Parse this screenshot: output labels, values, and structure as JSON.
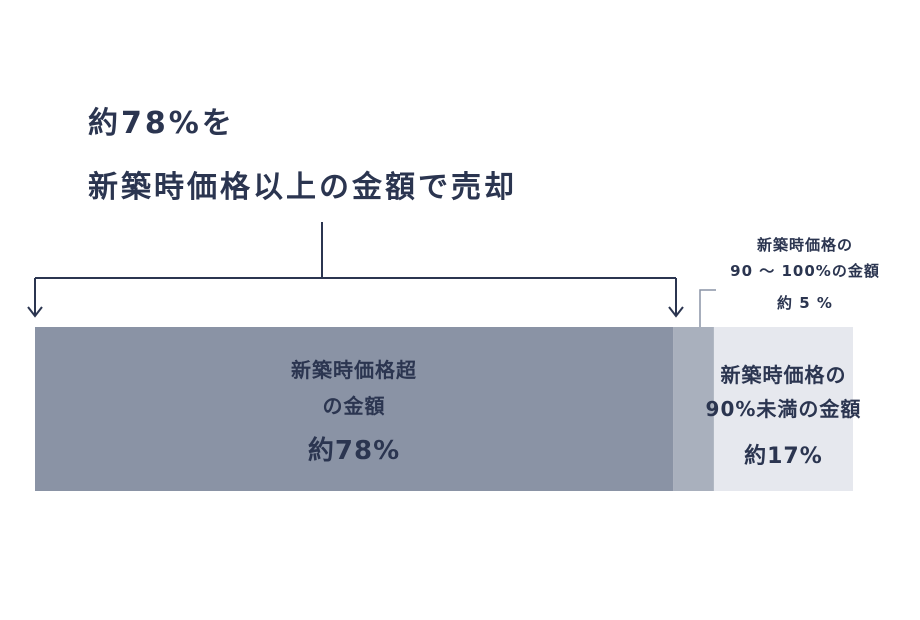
{
  "chart_data": {
    "type": "bar",
    "orientation": "horizontal",
    "stacked": true,
    "title": "約78%を\n新築時価格以上の金額で売却",
    "xlim": [
      0,
      100
    ],
    "series": [
      {
        "name": "新築時価格超\nの金額",
        "color": "#8a93a5",
        "values": [
          78
        ],
        "value_labels": [
          "約78%"
        ]
      },
      {
        "name": "新築時価格の\n90 ～ 100%の金額",
        "color": "#a9b0bd",
        "values": [
          5
        ],
        "value_labels": [
          "約 5 %"
        ]
      },
      {
        "name": "新築時価格の\n90%未満の金額",
        "color": "#e6e8ee",
        "values": [
          17
        ],
        "value_labels": [
          "約17%"
        ]
      }
    ]
  }
}
